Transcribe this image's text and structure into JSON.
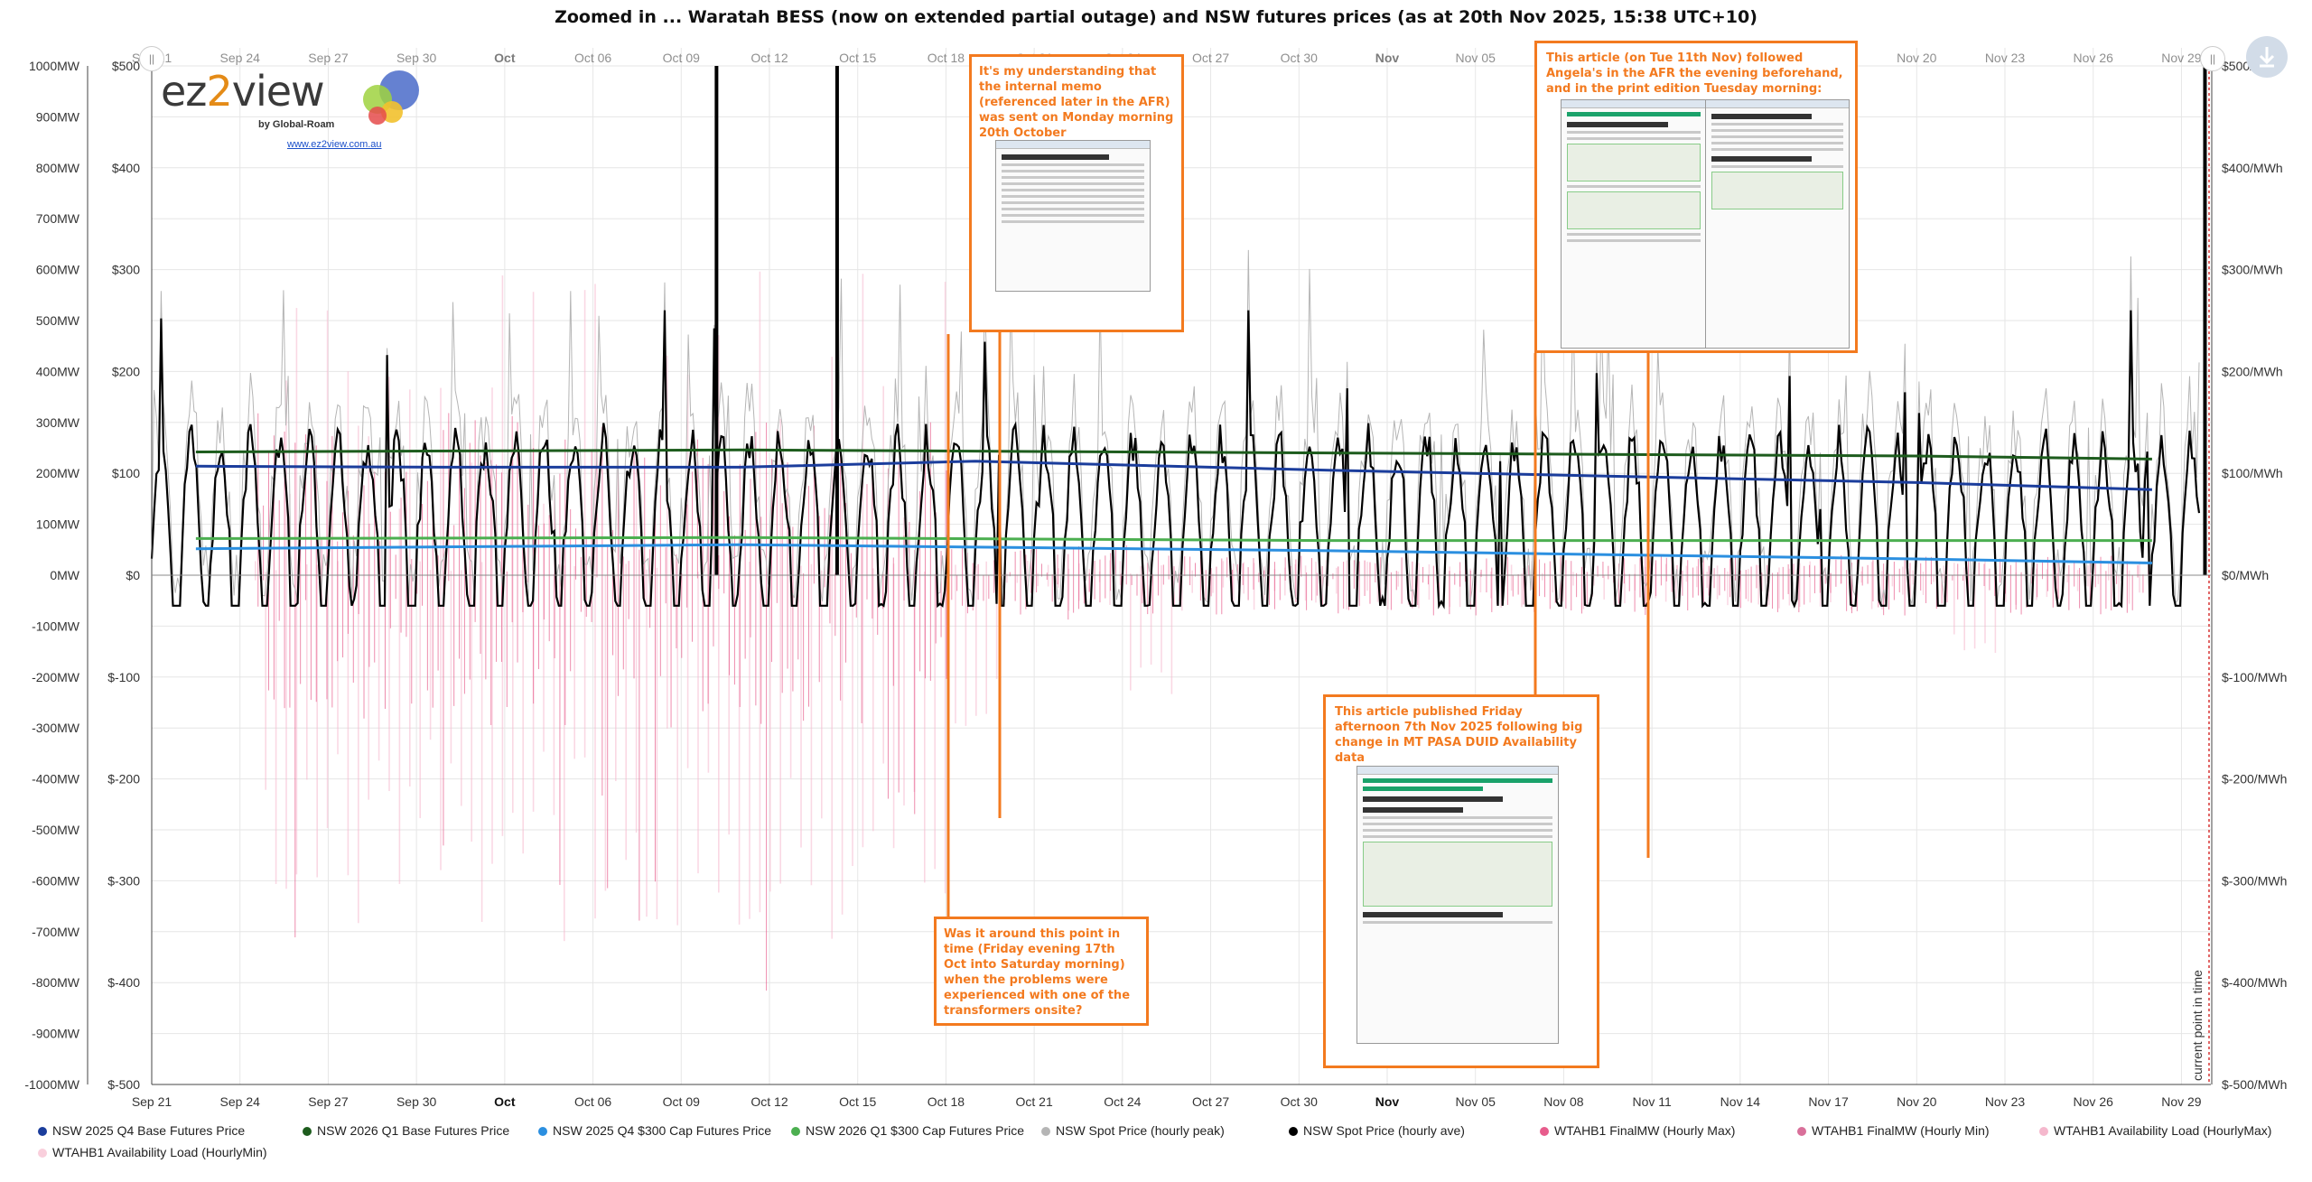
{
  "chart_data": {
    "type": "line",
    "title": "Zoomed in ... Waratah BESS (now on extended partial outage) and NSW futures prices (as at 20th Nov 2025, 15:38 UTC+10)",
    "x_tick_labels": [
      "Sep 21",
      "Sep 24",
      "Sep 27",
      "Sep 30",
      "Oct",
      "Oct 06",
      "Oct 09",
      "Oct 12",
      "Oct 15",
      "Oct 18",
      "Oct 21",
      "Oct 24",
      "Oct 27",
      "Oct 30",
      "Nov",
      "Nov 05",
      "Nov 08",
      "Nov 11",
      "Nov 14",
      "Nov 17",
      "Nov 20",
      "Nov 23",
      "Nov 26",
      "Nov 29"
    ],
    "x_bold_labels": [
      "Oct",
      "Nov"
    ],
    "x_range_days": [
      0,
      70
    ],
    "left_axis_mw_labels": [
      "1000MW",
      "900MW",
      "800MW",
      "700MW",
      "600MW",
      "500MW",
      "400MW",
      "300MW",
      "200MW",
      "100MW",
      "0MW",
      "-100MW",
      "-200MW",
      "-300MW",
      "-400MW",
      "-500MW",
      "-600MW",
      "-700MW",
      "-800MW",
      "-900MW",
      "-1000MW"
    ],
    "left_axis_price_labels": [
      "$500",
      "$400",
      "$300",
      "$200",
      "$100",
      "$0",
      "$-100",
      "$-200",
      "$-300",
      "$-400",
      "$-500"
    ],
    "right_axis_labels": [
      "$500/MWh",
      "$400/MWh",
      "$300/MWh",
      "$200/MWh",
      "$100/MWh",
      "$0/MWh",
      "$-100/MWh",
      "$-200/MWh",
      "$-300/MWh",
      "$-400/MWh",
      "$-500/MWh"
    ],
    "mw_range": [
      -1000,
      1000
    ],
    "price_range": [
      -500,
      500
    ],
    "series": [
      {
        "name": "NSW 2025 Q4 Base Futures Price",
        "color": "#1b3d9c",
        "axis": "price",
        "x_days": [
          1.5,
          10,
          20,
          28,
          40,
          50,
          60,
          68
        ],
        "values": [
          107,
          106,
          106,
          112,
          103,
          97,
          91,
          84
        ]
      },
      {
        "name": "NSW 2026 Q1 Base Futures Price",
        "color": "#1d5c1d",
        "axis": "price",
        "x_days": [
          1.5,
          20,
          40,
          60,
          68
        ],
        "values": [
          121,
          123,
          120,
          117,
          114
        ]
      },
      {
        "name": "NSW 2025 Q4 $300 Cap Futures Price",
        "color": "#2b8fe0",
        "axis": "price",
        "x_days": [
          1.5,
          20,
          40,
          60,
          68
        ],
        "values": [
          26,
          30,
          24,
          16,
          12
        ]
      },
      {
        "name": "NSW 2026 Q1 $300 Cap Futures Price",
        "color": "#4caf50",
        "axis": "price",
        "x_days": [
          1.5,
          20,
          40,
          60,
          68
        ],
        "values": [
          36,
          37,
          34,
          34,
          34
        ]
      },
      {
        "name": "NSW Spot Price (hourly peak)",
        "color": "#b5b5b5",
        "axis": "price"
      },
      {
        "name": "NSW Spot Price (hourly ave)",
        "color": "#000000",
        "axis": "price"
      },
      {
        "name": "WTAHB1 FinalMW (Hourly Max)",
        "color": "#e75c8c",
        "axis": "mw"
      },
      {
        "name": "WTAHB1 FinalMW (Hourly Min)",
        "color": "#d9709a",
        "axis": "mw"
      },
      {
        "name": "WTAHB1 Availability Load (HourlyMax)",
        "color": "#f5b8cd",
        "axis": "mw"
      },
      {
        "name": "WTAHB1 Availability Load (HourlyMin)",
        "color": "#f9cfdc",
        "axis": "mw"
      }
    ],
    "current_marker_label": "current point in time",
    "current_marker_day": 70
  },
  "logo": {
    "brand_prefix": "ez",
    "brand_mid": "2",
    "brand_suffix": "view",
    "byline": "by Global-Roam",
    "url": "www.ez2view.com.au"
  },
  "annotations": [
    {
      "id": "memo",
      "text": "It's my understanding that the internal memo (referenced later in the AFR) was sent on Monday morning 20th October"
    },
    {
      "id": "afr",
      "text": "This article (on Tue 11th Nov) followed Angela's in the AFR the evening beforehand, and in the print edition Tuesday morning:"
    },
    {
      "id": "friday",
      "text": "This article published Friday afternoon 7th Nov 2025 following big change in MT PASA DUID Availability data"
    },
    {
      "id": "transformer",
      "text": "Was it around this point in time (Friday evening 17th Oct into Saturday morning) when the problems were experienced with one of the transformers onsite?"
    }
  ]
}
